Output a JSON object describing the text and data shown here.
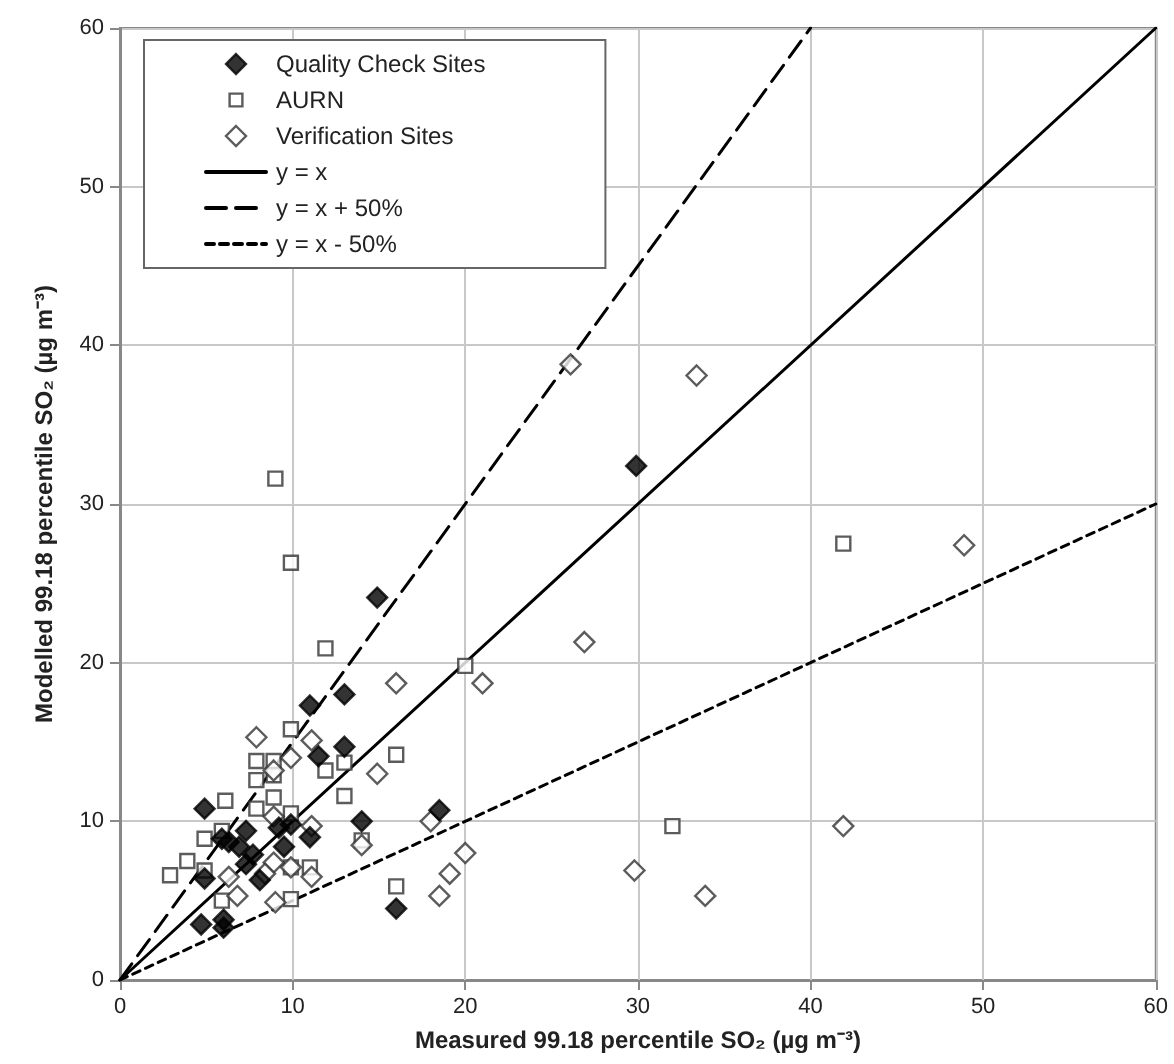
{
  "chart_data": {
    "type": "scatter",
    "xlabel": "Measured 99.18 percentile SO₂ (µg m⁻³)",
    "ylabel": "Modelled 99.18 percentile SO₂ (µg m⁻³)",
    "xlim": [
      0,
      60
    ],
    "ylim": [
      0,
      60
    ],
    "xticks": [
      0,
      10,
      20,
      30,
      40,
      50,
      60
    ],
    "yticks": [
      0,
      10,
      20,
      30,
      40,
      50,
      60
    ],
    "grid": true,
    "legend": "top left",
    "series": [
      {
        "name": "Quality Check Sites",
        "marker": "diamond",
        "color": "#000000",
        "x": [
          14.9,
          11.0,
          13.0,
          13.0,
          11.5,
          4.9,
          14.0,
          11.0,
          9.9,
          9.2,
          9.5,
          5.9,
          6.3,
          7.3,
          6.9,
          7.7,
          7.3,
          8.1,
          4.9,
          4.7,
          6.0,
          6.0,
          16.0,
          18.5,
          29.9
        ],
        "values": [
          24.1,
          17.3,
          18.0,
          14.7,
          14.1,
          10.8,
          10.0,
          9.0,
          9.8,
          9.6,
          8.4,
          8.9,
          8.7,
          9.4,
          8.4,
          7.9,
          7.3,
          6.3,
          6.4,
          3.5,
          3.8,
          3.3,
          4.5,
          10.7,
          32.4
        ]
      },
      {
        "name": "AURN",
        "marker": "square",
        "color": "#333333",
        "x": [
          9.0,
          9.9,
          11.9,
          9.9,
          7.9,
          8.9,
          7.9,
          8.9,
          11.9,
          13.0,
          16.0,
          13.0,
          8.9,
          7.9,
          6.1,
          9.9,
          4.9,
          5.9,
          3.9,
          4.9,
          2.9,
          14.0,
          11.0,
          9.9,
          5.9,
          9.9,
          16.0,
          20.0,
          41.9,
          32.0
        ],
        "values": [
          31.6,
          26.3,
          20.9,
          15.8,
          13.8,
          13.8,
          12.6,
          12.9,
          13.2,
          13.7,
          14.2,
          11.6,
          11.5,
          10.8,
          11.3,
          10.5,
          8.9,
          9.4,
          7.5,
          6.9,
          6.6,
          8.8,
          7.1,
          7.1,
          5.0,
          5.1,
          5.9,
          19.8,
          27.5,
          9.7
        ]
      },
      {
        "name": "Verification Sites",
        "marker": "diamond",
        "color": "#333333",
        "x": [
          7.9,
          16.0,
          11.1,
          9.9,
          8.9,
          14.9,
          11.1,
          8.9,
          18.0,
          14.0,
          8.9,
          9.9,
          11.1,
          6.3,
          6.8,
          9.0,
          18.5,
          8.4,
          26.1,
          33.4,
          26.9,
          21.0,
          20.0,
          19.1,
          29.8,
          33.9,
          41.9,
          48.9
        ],
        "values": [
          15.3,
          18.7,
          15.1,
          14.0,
          13.2,
          13.0,
          9.7,
          10.3,
          10.0,
          8.5,
          7.4,
          7.1,
          6.5,
          6.5,
          5.3,
          4.9,
          5.3,
          6.7,
          38.8,
          38.1,
          21.3,
          18.7,
          8.0,
          6.7,
          6.9,
          5.3,
          9.7,
          27.4
        ]
      },
      {
        "name": "y = x",
        "type": "line",
        "marker": "none",
        "line_style": "solid",
        "color": "#000000",
        "x": [
          0,
          60
        ],
        "values": [
          0,
          60
        ]
      },
      {
        "name": "y = x + 50%",
        "type": "line",
        "marker": "none",
        "line_style": "dashed",
        "color": "#000000",
        "x": [
          0,
          40
        ],
        "values": [
          0,
          60
        ]
      },
      {
        "name": "y = x - 50%",
        "type": "line",
        "marker": "none",
        "line_style": "dotted",
        "color": "#000000",
        "x": [
          0,
          60
        ],
        "values": [
          0,
          30
        ]
      }
    ]
  }
}
